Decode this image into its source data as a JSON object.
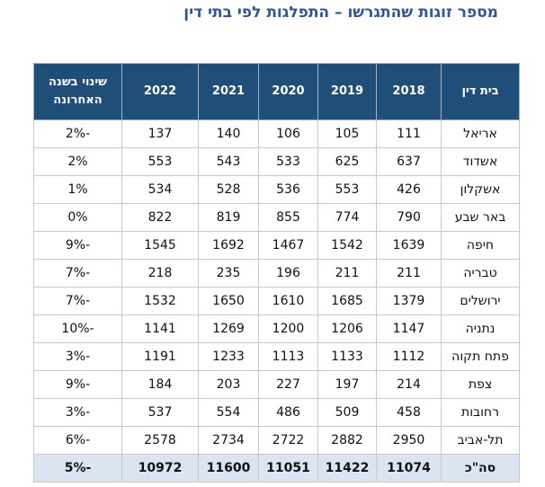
{
  "title": "מספר זוגות שהתגרשו – התפלגות לפי בתי דין",
  "table": {
    "header": [
      "בית דין",
      "2018",
      "2019",
      "2020",
      "2021",
      "2022",
      [
        "שינוי בשנה",
        "האחרונה"
      ]
    ],
    "rows": [
      [
        "אריאל",
        111,
        105,
        106,
        140,
        137,
        "-2%"
      ],
      [
        "אשדוד",
        637,
        625,
        533,
        543,
        553,
        "2%"
      ],
      [
        "אשקלון",
        426,
        553,
        536,
        528,
        534,
        "1%"
      ],
      [
        "באר שבע",
        790,
        774,
        855,
        819,
        822,
        "0%"
      ],
      [
        "חיפה",
        1639,
        1542,
        1467,
        1692,
        1545,
        "-9%"
      ],
      [
        "טבריה",
        211,
        211,
        196,
        235,
        218,
        "-7%"
      ],
      [
        "ירושלים",
        1379,
        1685,
        1610,
        1650,
        1532,
        "-7%"
      ],
      [
        "נתניה",
        1147,
        1206,
        1200,
        1269,
        1141,
        "-10%"
      ],
      [
        "פתח תקוה",
        1112,
        1133,
        1113,
        1233,
        1191,
        "-3%"
      ],
      [
        "צפת",
        214,
        197,
        227,
        203,
        184,
        "-9%"
      ],
      [
        "רחובות",
        458,
        509,
        486,
        554,
        537,
        "-3%"
      ],
      [
        "תל-אביב",
        2950,
        2882,
        2722,
        2734,
        2578,
        "-6%"
      ]
    ],
    "total": [
      "סה\"כ",
      11074,
      11422,
      11051,
      11600,
      10972,
      "-5%"
    ]
  }
}
